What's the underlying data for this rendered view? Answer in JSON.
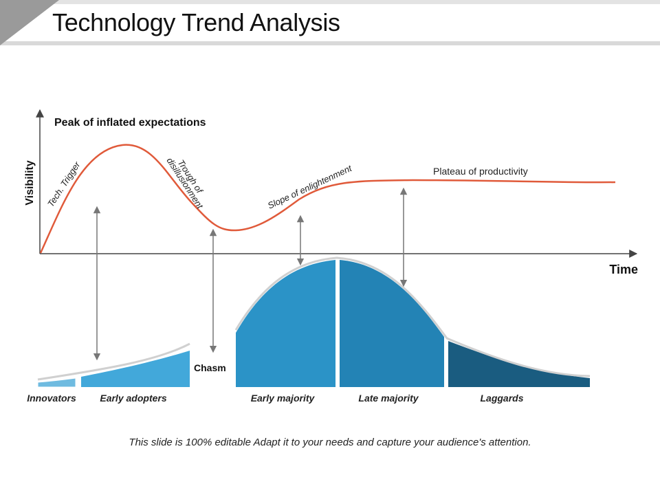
{
  "title": "Technology Trend Analysis",
  "footer": "This slide is 100% editable Adapt it to your needs and capture your audience's attention.",
  "axes": {
    "y_label": "Visibility",
    "x_label": "Time"
  },
  "hype_curve": {
    "peak_label": "Peak of inflated expectations",
    "phases": {
      "trigger": "Tech. Trigger",
      "trough_line1": "Trough of",
      "trough_line2": "disillusionment",
      "slope": "Slope of enlightenment",
      "plateau": "Plateau of productivity"
    },
    "curve_color": "#e05a3a"
  },
  "adoption": {
    "chasm_label": "Chasm",
    "segments": [
      {
        "label": "Innovators",
        "color": "#6fbbe0"
      },
      {
        "label": "Early adopters",
        "color": "#42a8da"
      },
      {
        "label": "Early majority",
        "color": "#2b93c7"
      },
      {
        "label": "Late majority",
        "color": "#2383b5"
      },
      {
        "label": "Laggards",
        "color": "#1a5c80"
      }
    ]
  }
}
